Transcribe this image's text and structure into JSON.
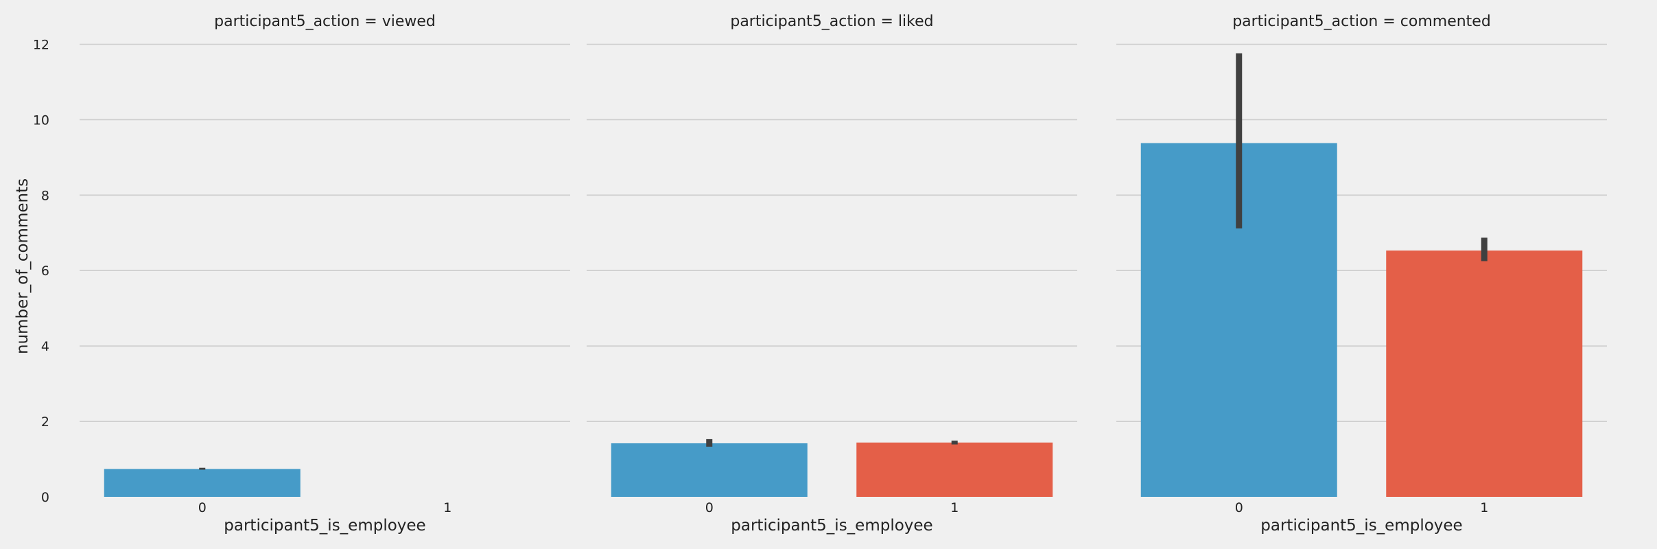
{
  "chart_data": {
    "type": "bar",
    "ylabel": "number_of_comments",
    "xlabel": "participant5_is_employee",
    "ylim": [
      0,
      12.3
    ],
    "yticks": [
      0,
      2,
      4,
      6,
      8,
      10,
      12
    ],
    "categories": [
      "0",
      "1"
    ],
    "grid": true,
    "colors": {
      "0": "#469bc8",
      "1": "#e45f48",
      "errorbar": "#404040",
      "grid": "#cccccc",
      "background": "#f0f0f0"
    },
    "panels": [
      {
        "title": "participant5_action = viewed",
        "bars": [
          {
            "category": "0",
            "value": 0.74,
            "ci": [
              0.72,
              0.77
            ]
          },
          {
            "category": "1",
            "value": null,
            "ci": null
          }
        ]
      },
      {
        "title": "participant5_action = liked",
        "bars": [
          {
            "category": "0",
            "value": 1.42,
            "ci": [
              1.33,
              1.53
            ]
          },
          {
            "category": "1",
            "value": 1.44,
            "ci": [
              1.39,
              1.49
            ]
          }
        ]
      },
      {
        "title": "participant5_action = commented",
        "bars": [
          {
            "category": "0",
            "value": 9.38,
            "ci": [
              7.12,
              11.76
            ]
          },
          {
            "category": "1",
            "value": 6.53,
            "ci": [
              6.25,
              6.87
            ]
          }
        ]
      }
    ]
  }
}
